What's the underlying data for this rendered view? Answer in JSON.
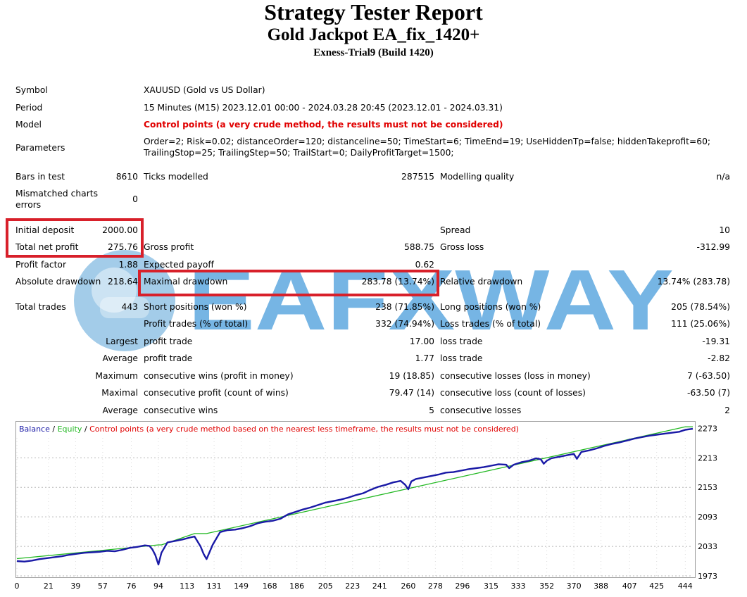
{
  "header": {
    "title": "Strategy Tester Report",
    "subtitle": "Gold Jackpot EA_fix_1420+",
    "server": "Exness-Trial9 (Build 1420)"
  },
  "report": {
    "symbol_label": "Symbol",
    "symbol_value": "XAUUSD (Gold vs US Dollar)",
    "period_label": "Period",
    "period_value": "15 Minutes (M15) 2023.12.01 00:00 - 2024.03.28 20:45 (2023.12.01 - 2024.03.31)",
    "model_label": "Model",
    "model_value": "Control points (a very crude method, the results must not be considered)",
    "params_label": "Parameters",
    "params_line1": "Order=2; Risk=0.02; distanceOrder=120; distanceline=50; TimeStart=6; TimeEnd=19; UseHiddenTp=false; hiddenTakeprofit=60;",
    "params_line2": "TrailingStop=25; TrailingStep=50; TrailStart=0; DailyProfitTarget=1500;",
    "bars_label": "Bars in test",
    "bars_value": "8610",
    "ticks_label": "Ticks modelled",
    "ticks_value": "287515",
    "quality_label": "Modelling quality",
    "quality_value": "n/a",
    "mismatch_label1": "Mismatched charts",
    "mismatch_label2": "errors",
    "mismatch_value": "0",
    "deposit_label": "Initial deposit",
    "deposit_value": "2000.00",
    "spread_label": "Spread",
    "spread_value": "10",
    "netprofit_label": "Total net profit",
    "netprofit_value": "275.76",
    "grossprofit_label": "Gross profit",
    "grossprofit_value": "588.75",
    "grossloss_label": "Gross loss",
    "grossloss_value": "-312.99",
    "pf_label": "Profit factor",
    "pf_value": "1.88",
    "payoff_label": "Expected payoff",
    "payoff_value": "0.62",
    "absdd_label": "Absolute drawdown",
    "absdd_value": "218.64",
    "maxdd_label": "Maximal drawdown",
    "maxdd_value": "283.78 (13.74%)",
    "reldd_label": "Relative drawdown",
    "reldd_value": "13.74% (283.78)",
    "trades_label": "Total trades",
    "trades_value": "443",
    "short_label": "Short positions (won %)",
    "short_value": "238 (71.85%)",
    "long_label": "Long positions (won %)",
    "long_value": "205 (78.54%)",
    "profit_trades_label": "Profit trades (% of total)",
    "profit_trades_value": "332 (74.94%)",
    "loss_trades_label": "Loss trades (% of total)",
    "loss_trades_value": "111 (25.06%)",
    "largest_label": "Largest",
    "largest_profit_label": "profit trade",
    "largest_profit_value": "17.00",
    "largest_loss_label": "loss trade",
    "largest_loss_value": "-19.31",
    "average_label": "Average",
    "average_profit_label": "profit trade",
    "average_profit_value": "1.77",
    "average_loss_label": "loss trade",
    "average_loss_value": "-2.82",
    "maximum_label": "Maximum",
    "max_wins_label": "consecutive wins (profit in money)",
    "max_wins_value": "19 (18.85)",
    "max_losses_label": "consecutive losses (loss in money)",
    "max_losses_value": "7 (-63.50)",
    "maximal_label": "Maximal",
    "maximal_profit_label": "consecutive profit (count of wins)",
    "maximal_profit_value": "79.47 (14)",
    "maximal_loss_label": "consecutive loss (count of losses)",
    "maximal_loss_value": "-63.50 (7)",
    "avg_consec_label": "Average",
    "avg_wins_label": "consecutive wins",
    "avg_wins_value": "5",
    "avg_losses_label": "consecutive losses",
    "avg_losses_value": "2"
  },
  "watermark": {
    "text": "EAFXWAY"
  },
  "colors": {
    "balance": "#1a1aa6",
    "equity": "#22b822",
    "highlight": "#d8202a",
    "model_warning": "#e00000"
  },
  "chart_data": {
    "type": "line",
    "legend": {
      "balance": "Balance",
      "sep1": " / ",
      "equity": "Equity",
      "sep2": " / ",
      "note": "Control points (a very crude method based on the nearest less timeframe, the results must not be considered)"
    },
    "x_ticks": [
      "0",
      "21",
      "39",
      "57",
      "76",
      "94",
      "113",
      "131",
      "149",
      "168",
      "186",
      "205",
      "223",
      "241",
      "260",
      "278",
      "296",
      "315",
      "333",
      "352",
      "370",
      "388",
      "407",
      "425",
      "444"
    ],
    "y_ticks": [
      "2273",
      "2213",
      "2153",
      "2093",
      "2033",
      "1973"
    ],
    "xlim": [
      0,
      449
    ],
    "ylim": [
      1973,
      2285
    ],
    "grid": true,
    "series": [
      {
        "name": "Balance",
        "x": [
          0,
          5,
          10,
          15,
          20,
          25,
          30,
          35,
          40,
          45,
          50,
          55,
          60,
          65,
          70,
          75,
          80,
          85,
          88,
          90,
          92,
          94,
          96,
          100,
          105,
          110,
          115,
          118,
          120,
          122,
          124,
          126,
          130,
          135,
          140,
          145,
          150,
          155,
          160,
          165,
          170,
          175,
          180,
          185,
          190,
          195,
          200,
          205,
          210,
          215,
          220,
          225,
          230,
          235,
          240,
          245,
          250,
          255,
          258,
          260,
          262,
          265,
          270,
          275,
          280,
          285,
          290,
          295,
          300,
          305,
          310,
          315,
          320,
          325,
          327,
          330,
          335,
          340,
          345,
          348,
          350,
          352,
          355,
          360,
          365,
          370,
          372,
          375,
          380,
          385,
          390,
          395,
          400,
          405,
          410,
          415,
          420,
          425,
          430,
          435,
          440,
          444,
          449
        ],
        "y": [
          2003,
          2002,
          2004,
          2007,
          2009,
          2011,
          2013,
          2016,
          2018,
          2020,
          2021,
          2022,
          2024,
          2023,
          2026,
          2030,
          2032,
          2035,
          2034,
          2027,
          2015,
          1996,
          2020,
          2041,
          2044,
          2047,
          2051,
          2053,
          2043,
          2033,
          2018,
          2007,
          2036,
          2062,
          2066,
          2067,
          2070,
          2074,
          2080,
          2083,
          2085,
          2089,
          2098,
          2103,
          2108,
          2112,
          2117,
          2122,
          2125,
          2128,
          2132,
          2137,
          2141,
          2148,
          2154,
          2158,
          2163,
          2166,
          2158,
          2149,
          2165,
          2170,
          2173,
          2176,
          2179,
          2183,
          2184,
          2187,
          2190,
          2192,
          2194,
          2197,
          2200,
          2199,
          2192,
          2199,
          2204,
          2207,
          2212,
          2210,
          2201,
          2207,
          2212,
          2215,
          2218,
          2221,
          2211,
          2225,
          2228,
          2232,
          2237,
          2241,
          2244,
          2248,
          2252,
          2255,
          2258,
          2260,
          2262,
          2264,
          2266,
          2270,
          2272
        ]
      },
      {
        "name": "Equity",
        "x": [
          0,
          94,
          96,
          118,
          126,
          444,
          449
        ],
        "y": [
          2008,
          2036,
          2036,
          2059,
          2059,
          2276,
          2276
        ]
      }
    ]
  }
}
